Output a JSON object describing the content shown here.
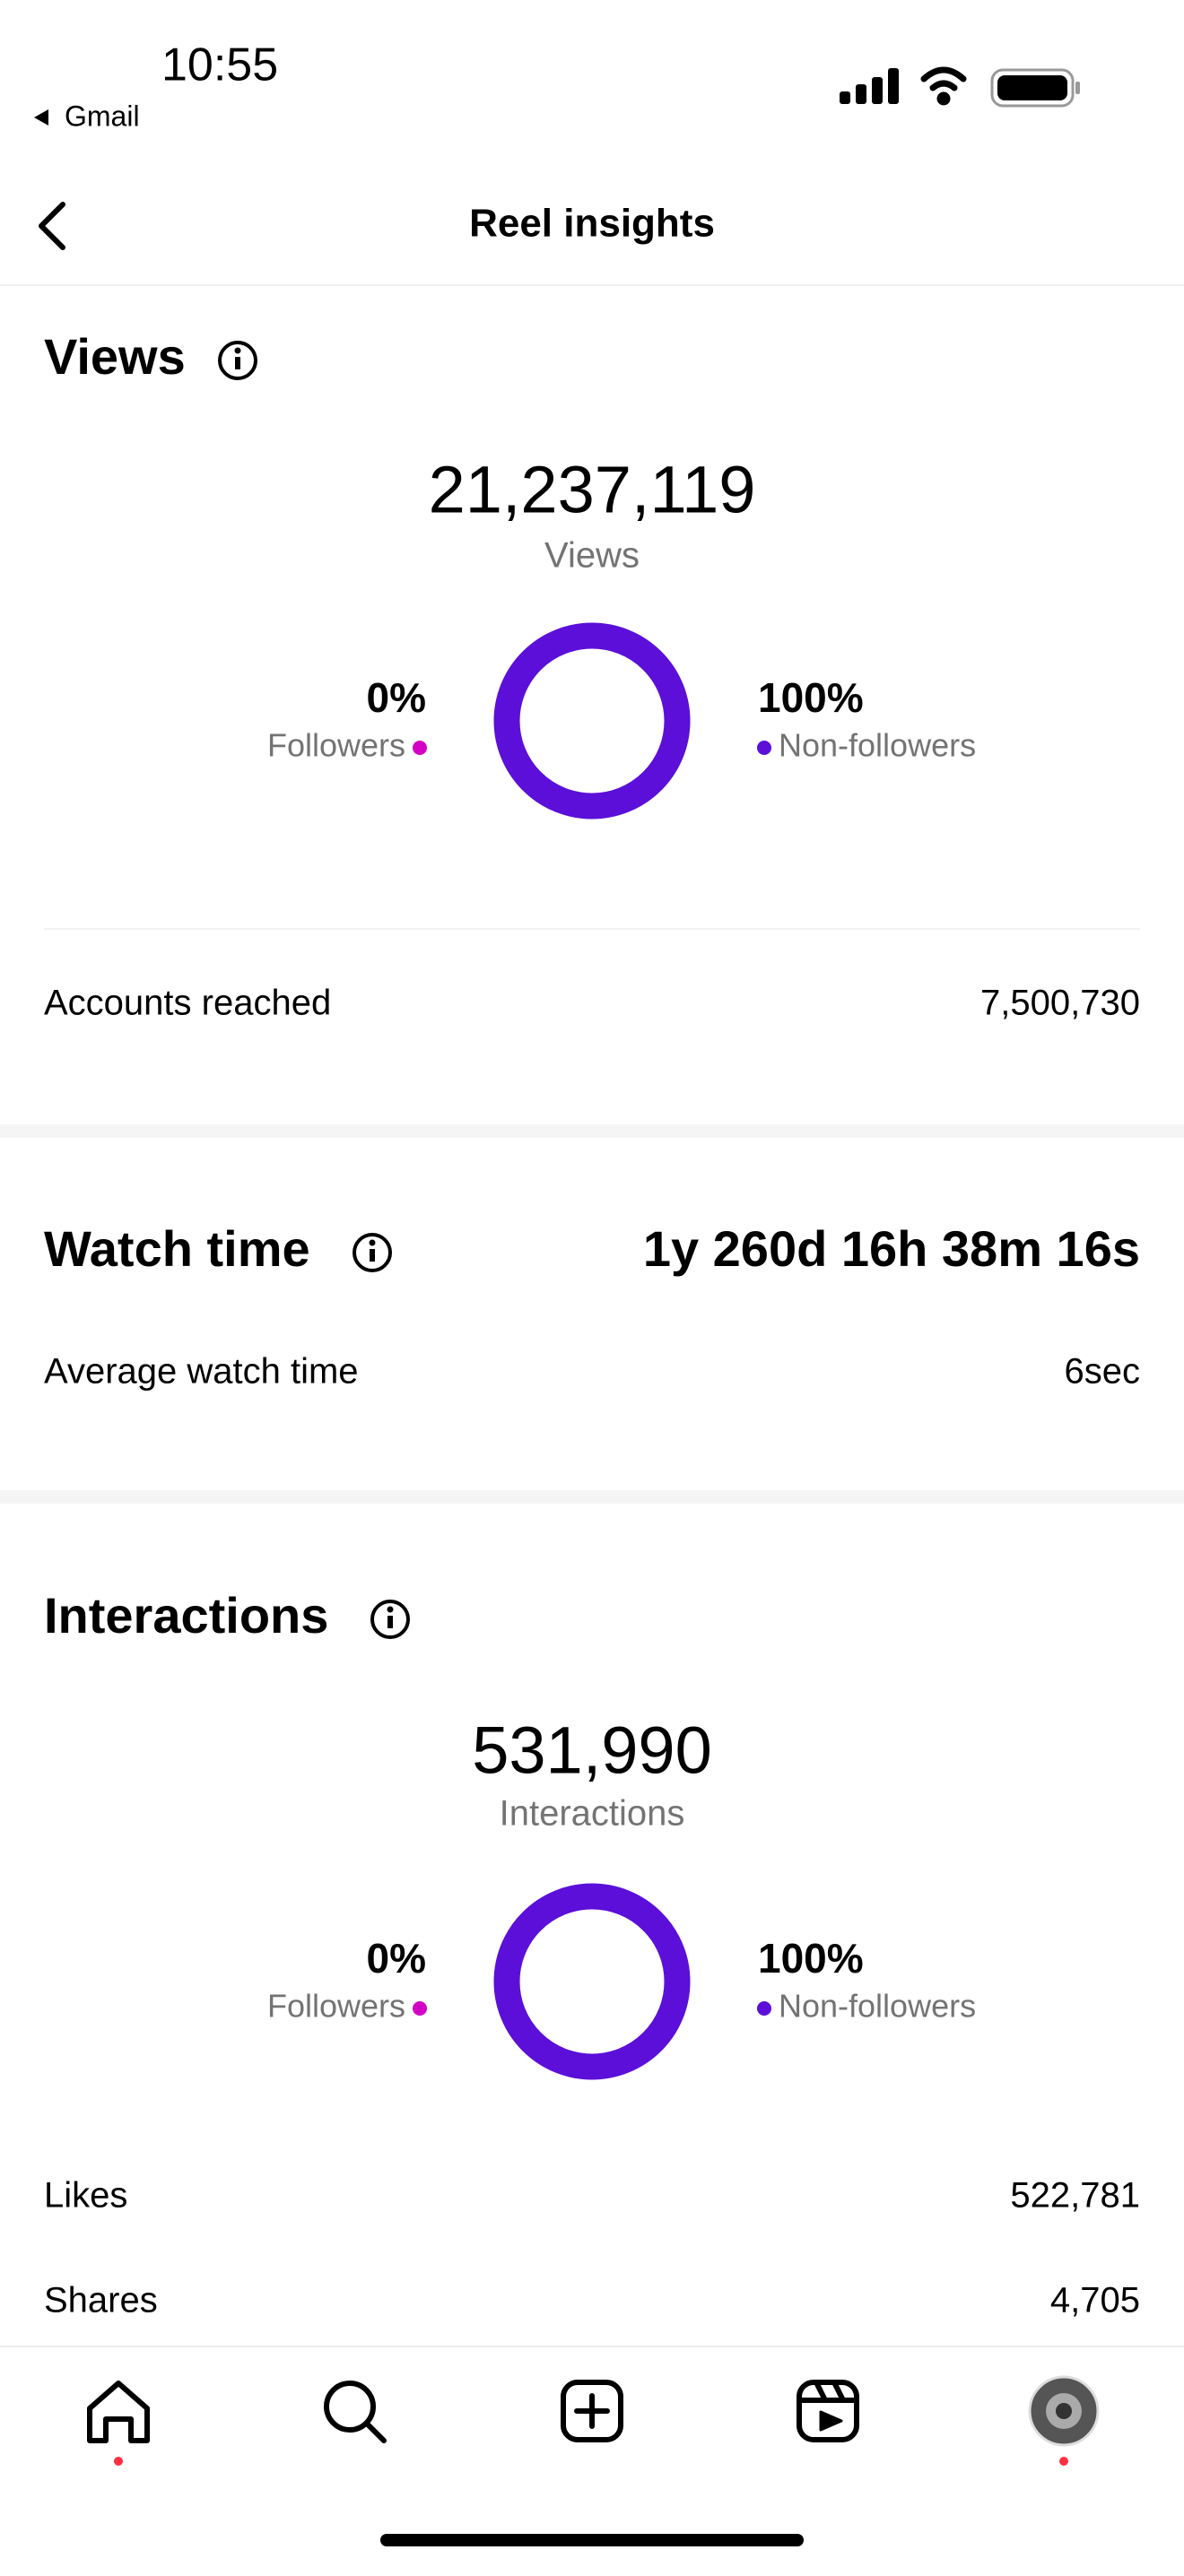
{
  "status_bar": {
    "time": "10:55",
    "back_app": "Gmail"
  },
  "header": {
    "title": "Reel insights"
  },
  "views": {
    "title": "Views",
    "total": "21,237,119",
    "total_label": "Views",
    "breakdown": [
      {
        "label": "0%",
        "name": "Followers",
        "value": 0,
        "color": "#d300c5"
      },
      {
        "label": "100%",
        "name": "Non-followers",
        "value": 100,
        "color": "#5b0fd9"
      }
    ],
    "rows": [
      {
        "label": "Accounts reached",
        "value": "7,500,730"
      }
    ]
  },
  "watch_time": {
    "title": "Watch time",
    "total": "1y 260d 16h 38m 16s",
    "rows": [
      {
        "label": "Average watch time",
        "value": "6sec"
      }
    ]
  },
  "interactions": {
    "title": "Interactions",
    "total": "531,990",
    "total_label": "Interactions",
    "breakdown": [
      {
        "label": "0%",
        "name": "Followers",
        "value": 0,
        "color": "#d300c5"
      },
      {
        "label": "100%",
        "name": "Non-followers",
        "value": 100,
        "color": "#5b0fd9"
      }
    ],
    "rows": [
      {
        "label": "Likes",
        "value": "522,781"
      },
      {
        "label": "Shares",
        "value": "4,705"
      }
    ]
  }
}
